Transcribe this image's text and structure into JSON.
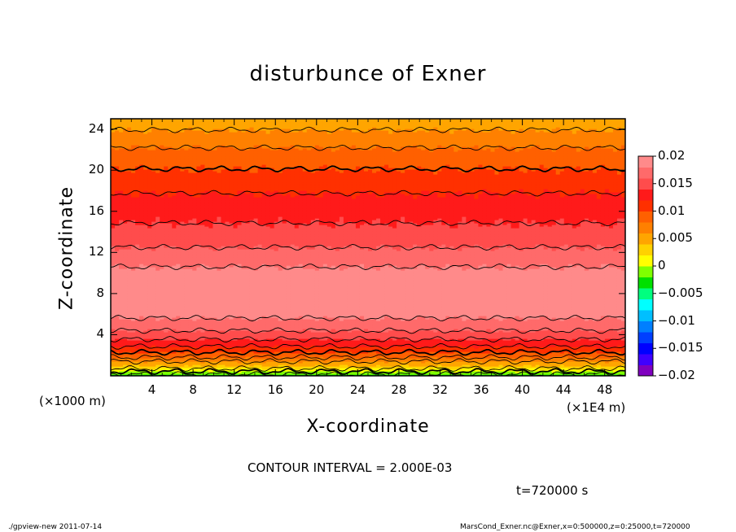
{
  "chart_data": {
    "type": "heatmap",
    "title": "disturbunce of Exner",
    "xlabel": "X-coordinate",
    "ylabel": "Z-coordinate",
    "x_unit": "(×1E4 m)",
    "y_unit": "(×1000 m)",
    "xlim": [
      0,
      50
    ],
    "ylim": [
      0,
      25
    ],
    "x_ticks": [
      "4",
      "8",
      "12",
      "16",
      "20",
      "24",
      "28",
      "32",
      "36",
      "40",
      "44",
      "48"
    ],
    "y_ticks": [
      "4",
      "8",
      "12",
      "16",
      "20",
      "24"
    ],
    "x_tick_values": [
      4,
      8,
      12,
      16,
      20,
      24,
      28,
      32,
      36,
      40,
      44,
      48
    ],
    "y_tick_values": [
      4,
      8,
      12,
      16,
      20,
      24
    ],
    "colorbar": {
      "min": -0.02,
      "max": 0.02,
      "ticks": [
        "0.02",
        "0.015",
        "0.01",
        "0.005",
        "0",
        "−0.005",
        "−0.01",
        "−0.015",
        "−0.02"
      ],
      "tick_values": [
        0.02,
        0.015,
        0.01,
        0.005,
        0,
        -0.005,
        -0.01,
        -0.015,
        -0.02
      ]
    },
    "contour_interval": 0.002,
    "profile_z": [
      0,
      1,
      2,
      3,
      4,
      5,
      6,
      7,
      8,
      9,
      10,
      11,
      12,
      13,
      14,
      15,
      16,
      17,
      18,
      19,
      20,
      21,
      22,
      23,
      24,
      25
    ],
    "profile_value": [
      -0.003,
      0.004,
      0.009,
      0.0125,
      0.0152,
      0.0172,
      0.0185,
      0.0193,
      0.0196,
      0.0193,
      0.0186,
      0.0176,
      0.0165,
      0.0155,
      0.0146,
      0.0139,
      0.0133,
      0.0126,
      0.0118,
      0.0109,
      0.0101,
      0.0093,
      0.0082,
      0.0071,
      0.0059,
      0.0047
    ]
  },
  "annotations": {
    "contour_interval_text": "CONTOUR INTERVAL = 2.000E-03",
    "time_text": "t=720000 s",
    "footer_left": "./gpview-new  2011-07-14",
    "footer_right": "MarsCond_Exner.nc@Exner,x=0:500000,z=0:25000,t=720000"
  },
  "colors": {
    "palette": [
      "#7f00bf",
      "#3f00ff",
      "#0000ff",
      "#003fff",
      "#007fff",
      "#00bfff",
      "#00ffff",
      "#00ff7f",
      "#00e000",
      "#7fff00",
      "#ffff00",
      "#ffd200",
      "#ffa500",
      "#ff8000",
      "#ff6000",
      "#ff3000",
      "#ff1a1a",
      "#ff4c4c",
      "#ff6a6a",
      "#ff8a8a"
    ]
  }
}
